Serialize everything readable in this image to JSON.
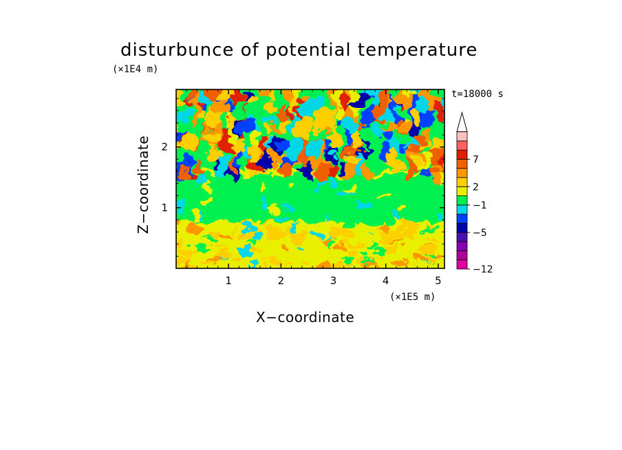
{
  "chart_data": {
    "type": "heatmap",
    "title": "disturbunce of potential temperature",
    "xlabel": "X−coordinate",
    "ylabel": "Z−coordinate",
    "x_scale_label": "(×1E5 m)",
    "y_scale_label": "(×1E4 m)",
    "time_label": "t=18000 s",
    "xlim": [
      0,
      5.12
    ],
    "ylim": [
      0,
      2.95
    ],
    "x_ticks": [
      1,
      2,
      3,
      4,
      5
    ],
    "y_ticks": [
      1,
      2
    ],
    "x_tick_labels": [
      "1",
      "2",
      "3",
      "4",
      "5"
    ],
    "y_tick_labels": [
      "1",
      "2"
    ],
    "colorbar": {
      "colors": [
        "#e000a0",
        "#b0009a",
        "#8800b0",
        "#4a10b0",
        "#0000a8",
        "#0040ff",
        "#00d8e8",
        "#00f050",
        "#e8f000",
        "#ffd000",
        "#ff9800",
        "#f06000",
        "#e02000",
        "#ff6060",
        "#ffc0c0"
      ],
      "tick_labels": [
        {
          "level": 0,
          "label": "−12"
        },
        {
          "level": 4,
          "label": "−5"
        },
        {
          "level": 7,
          "label": "−1"
        },
        {
          "level": 9,
          "label": "2"
        },
        {
          "level": 12,
          "label": "7"
        }
      ],
      "extend": "max",
      "extend_color": "#ffffff"
    }
  }
}
